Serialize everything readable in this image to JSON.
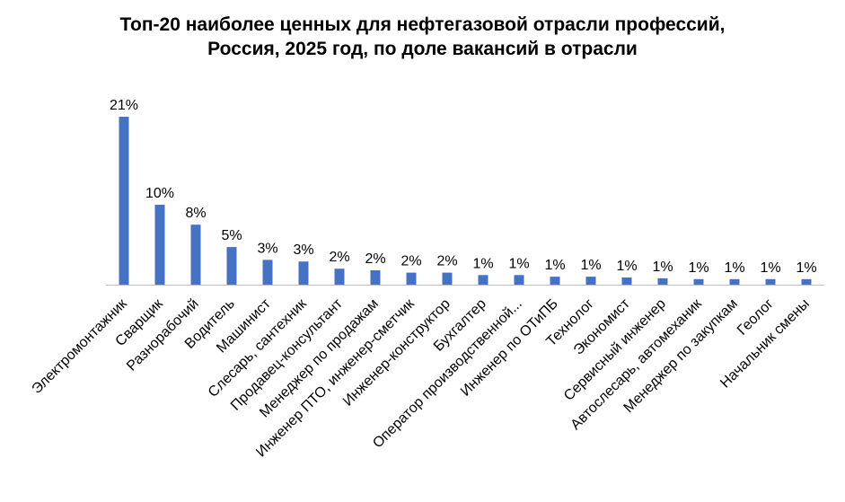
{
  "chart_data": {
    "type": "bar",
    "title_line1": "Топ-20 наиболее ценных для нефтегазовой отрасли профессий,",
    "title_line2": "Россия, 2025 год, по доле вакансий в отрасли",
    "xlabel": "",
    "ylabel": "",
    "ylim": [
      0,
      21
    ],
    "grid": false,
    "legend": "none",
    "bar_color": "#4472C4",
    "categories": [
      "Электромонтажник",
      "Сварщик",
      "Разнорабочий",
      "Водитель",
      "Машинист",
      "Слесарь, сантехник",
      "Продавец-консультант",
      "Менеджер по продажам",
      "Инженер ПТО, инженер-сметчик",
      "Инженер-конструктор",
      "Бухгалтер",
      "Оператор производственной...",
      "Инженер по ОТиПБ",
      "Технолог",
      "Экономист",
      "Сервисный инженер",
      "Автослесарь, автомеханик",
      "Менеджер по закупкам",
      "Геолог",
      "Начальник смены"
    ],
    "values": [
      21,
      10,
      7.5,
      4.7,
      3.1,
      2.9,
      2.0,
      1.8,
      1.5,
      1.5,
      1.2,
      1.2,
      1.0,
      1.0,
      0.9,
      0.8,
      0.7,
      0.7,
      0.7,
      0.7
    ],
    "data_labels": [
      "21%",
      "10%",
      "8%",
      "5%",
      "3%",
      "3%",
      "2%",
      "2%",
      "2%",
      "2%",
      "1%",
      "1%",
      "1%",
      "1%",
      "1%",
      "1%",
      "1%",
      "1%",
      "1%",
      "1%"
    ]
  }
}
